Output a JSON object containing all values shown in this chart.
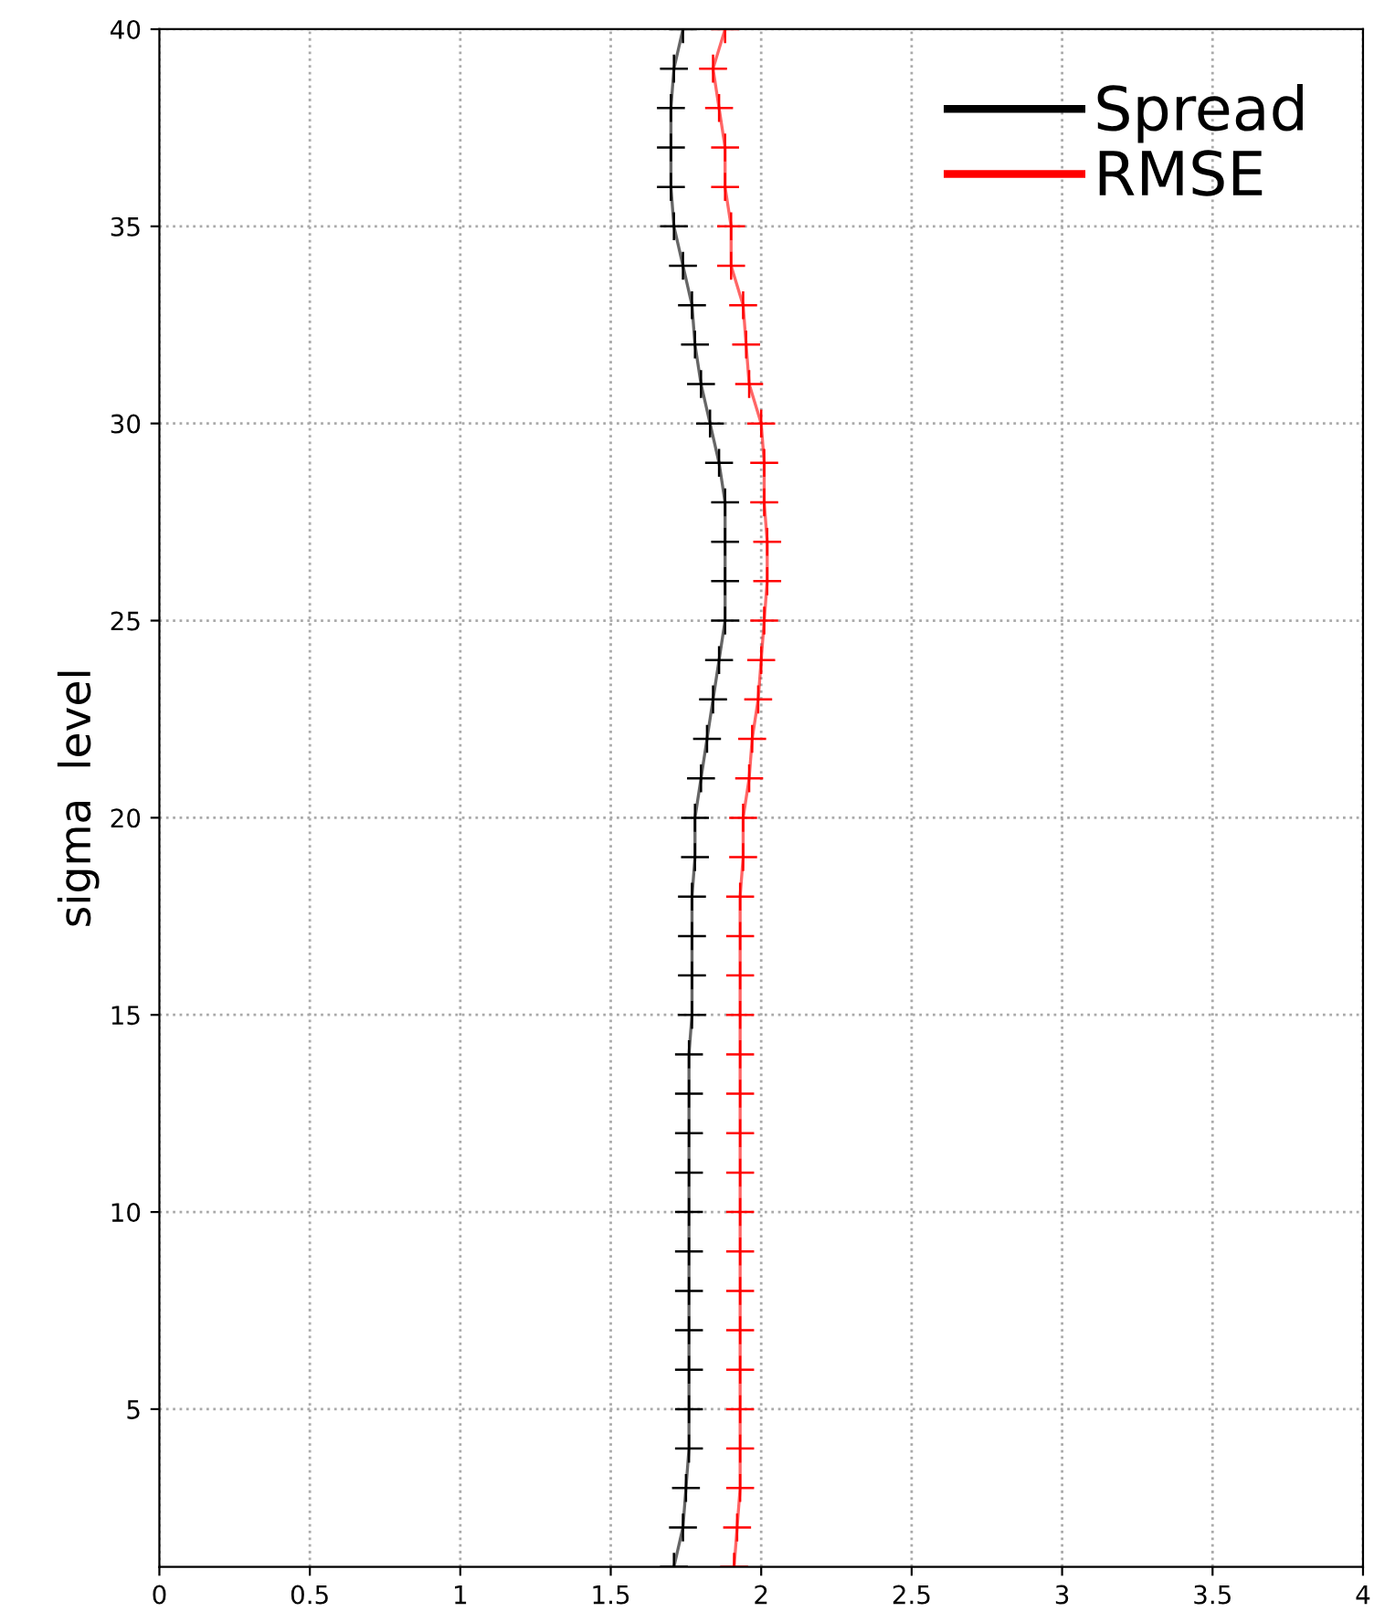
{
  "chart_data": {
    "type": "line",
    "ylabel": "sigma  level",
    "x": [
      1,
      2,
      3,
      4,
      5,
      6,
      7,
      8,
      9,
      10,
      11,
      12,
      13,
      14,
      15,
      16,
      17,
      18,
      19,
      20,
      21,
      22,
      23,
      24,
      25,
      26,
      27,
      28,
      29,
      30,
      31,
      32,
      33,
      34,
      35,
      36,
      37,
      38,
      39,
      40
    ],
    "series": [
      {
        "name": "Spread",
        "color": "#000000",
        "values": [
          1.71,
          1.74,
          1.75,
          1.76,
          1.76,
          1.76,
          1.76,
          1.76,
          1.76,
          1.76,
          1.76,
          1.76,
          1.76,
          1.76,
          1.77,
          1.77,
          1.77,
          1.77,
          1.78,
          1.78,
          1.8,
          1.82,
          1.84,
          1.86,
          1.88,
          1.88,
          1.88,
          1.88,
          1.86,
          1.83,
          1.8,
          1.78,
          1.77,
          1.74,
          1.71,
          1.7,
          1.7,
          1.7,
          1.71,
          1.74
        ]
      },
      {
        "name": "RMSE",
        "color": "#ff0000",
        "values": [
          1.91,
          1.92,
          1.93,
          1.93,
          1.93,
          1.93,
          1.93,
          1.93,
          1.93,
          1.93,
          1.93,
          1.93,
          1.93,
          1.93,
          1.93,
          1.93,
          1.93,
          1.93,
          1.94,
          1.94,
          1.96,
          1.97,
          1.99,
          2.0,
          2.01,
          2.02,
          2.02,
          2.01,
          2.01,
          2.0,
          1.96,
          1.95,
          1.94,
          1.9,
          1.9,
          1.88,
          1.88,
          1.86,
          1.84,
          1.88
        ]
      }
    ],
    "xlim": [
      0,
      4
    ],
    "xticks": [
      0,
      0.5,
      1,
      1.5,
      2,
      2.5,
      3,
      3.5,
      4
    ],
    "ylim": [
      1,
      40
    ],
    "yticks": [
      5,
      10,
      15,
      20,
      25,
      30,
      35,
      40
    ],
    "orientation": "horizontal",
    "marker": "cross",
    "line_style": "solid",
    "grid": true,
    "legend": "top right"
  }
}
